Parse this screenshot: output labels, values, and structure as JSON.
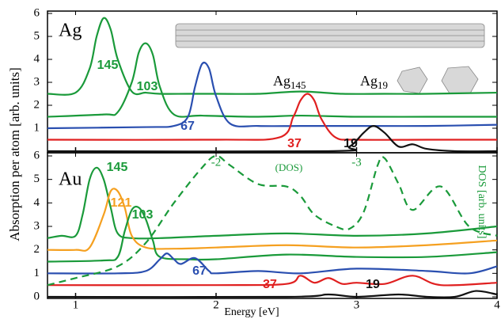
{
  "chart_data": [
    {
      "type": "line",
      "panel_label": "Ag",
      "ylabel": "Absorption per atom [arb. units]",
      "xlim": [
        0.8,
        4
      ],
      "xticks": [
        1,
        2,
        3,
        4
      ],
      "ylim": [
        0,
        6
      ],
      "yticks": [
        1,
        2,
        3,
        4,
        5,
        6
      ],
      "xtick_labels": false,
      "annotations": [
        {
          "text": "Ag",
          "sub": "145"
        },
        {
          "text": "Ag",
          "sub": "19"
        }
      ],
      "series": [
        {
          "name": "145",
          "color": "#1a9a3a",
          "x": [
            0.8,
            1.0,
            1.1,
            1.15,
            1.2,
            1.25,
            1.3,
            1.4,
            1.5,
            1.6,
            1.8,
            2.0,
            2.3,
            2.6,
            2.9,
            3.2,
            3.5,
            4.0
          ],
          "values": [
            2.5,
            2.55,
            3.6,
            5.0,
            5.8,
            5.3,
            4.0,
            2.6,
            2.55,
            2.5,
            2.5,
            2.5,
            2.5,
            2.6,
            2.5,
            2.5,
            2.5,
            2.55
          ]
        },
        {
          "name": "103",
          "color": "#1a9a3a",
          "x": [
            0.8,
            1.2,
            1.3,
            1.4,
            1.45,
            1.5,
            1.55,
            1.6,
            1.7,
            1.9,
            2.3,
            2.6,
            3.0,
            3.5,
            4.0
          ],
          "values": [
            1.5,
            1.6,
            1.7,
            3.0,
            4.3,
            4.7,
            4.2,
            2.8,
            1.6,
            1.55,
            1.5,
            1.55,
            1.5,
            1.5,
            1.5
          ]
        },
        {
          "name": "67",
          "color": "#2a4fb0",
          "x": [
            0.8,
            1.5,
            1.7,
            1.8,
            1.85,
            1.9,
            1.95,
            2.0,
            2.1,
            2.3,
            2.6,
            3.0,
            3.5,
            4.0
          ],
          "values": [
            1.0,
            1.05,
            1.1,
            1.5,
            2.8,
            3.8,
            3.6,
            2.4,
            1.2,
            1.1,
            1.1,
            1.1,
            1.1,
            1.15
          ]
        },
        {
          "name": "37",
          "color": "#e02020",
          "x": [
            0.8,
            2.0,
            2.45,
            2.55,
            2.6,
            2.65,
            2.7,
            2.75,
            2.85,
            3.0,
            3.5,
            4.0
          ],
          "values": [
            0.5,
            0.5,
            0.6,
            1.5,
            2.2,
            2.5,
            2.2,
            1.4,
            0.6,
            0.5,
            0.5,
            0.5
          ]
        },
        {
          "name": "19",
          "color": "#111111",
          "x": [
            0.8,
            2.8,
            2.95,
            3.05,
            3.12,
            3.2,
            3.3,
            3.4,
            3.5,
            3.7,
            4.0
          ],
          "values": [
            0,
            0,
            0.2,
            0.8,
            1.1,
            0.8,
            0.2,
            0.3,
            0.1,
            0,
            0
          ]
        }
      ]
    },
    {
      "type": "line",
      "panel_label": "Au",
      "xlabel": "Energy [eV]",
      "y2label": "DOS [arb. units]",
      "xlim": [
        0.8,
        4
      ],
      "xticks": [
        1,
        2,
        3,
        4
      ],
      "ylim": [
        0,
        6
      ],
      "yticks": [
        0,
        1,
        2,
        3,
        4,
        5,
        6
      ],
      "xtick_labels": true,
      "x2lim": [
        -0.8,
        -4
      ],
      "x2ticks": [
        -2,
        -3
      ],
      "annotations": [
        {
          "text": "(DOS)"
        }
      ],
      "series": [
        {
          "name": "145",
          "color": "#1a9a3a",
          "x": [
            0.8,
            0.9,
            1.0,
            1.05,
            1.1,
            1.15,
            1.2,
            1.25,
            1.3,
            1.4,
            1.6,
            2.0,
            2.5,
            3.0,
            3.5,
            4.0
          ],
          "values": [
            2.5,
            2.6,
            2.6,
            3.5,
            5.0,
            5.5,
            5.0,
            3.8,
            2.7,
            2.5,
            2.5,
            2.6,
            2.7,
            2.6,
            2.7,
            3.0
          ]
        },
        {
          "name": "121",
          "color": "#f5a020",
          "x": [
            0.8,
            1.0,
            1.1,
            1.2,
            1.25,
            1.3,
            1.35,
            1.4,
            1.5,
            1.7,
            2.0,
            2.5,
            3.0,
            3.5,
            4.0
          ],
          "values": [
            2.0,
            2.0,
            2.1,
            3.5,
            4.5,
            4.5,
            3.8,
            2.6,
            2.1,
            2.05,
            2.1,
            2.2,
            2.1,
            2.2,
            2.4
          ]
        },
        {
          "name": "103",
          "color": "#1a9a3a",
          "x": [
            0.8,
            1.2,
            1.3,
            1.35,
            1.4,
            1.45,
            1.5,
            1.55,
            1.6,
            1.8,
            2.0,
            2.5,
            3.0,
            3.5,
            4.0
          ],
          "values": [
            1.5,
            1.55,
            1.7,
            2.8,
            3.7,
            3.8,
            3.3,
            2.4,
            1.7,
            1.6,
            1.6,
            1.8,
            1.7,
            1.7,
            1.9
          ]
        },
        {
          "name": "67",
          "color": "#2a4fb0",
          "x": [
            0.8,
            1.3,
            1.5,
            1.6,
            1.65,
            1.7,
            1.75,
            1.85,
            1.95,
            2.0,
            2.3,
            2.6,
            3.0,
            3.5,
            3.8,
            4.0
          ],
          "values": [
            1.0,
            1.0,
            1.1,
            1.6,
            1.85,
            1.6,
            1.4,
            1.65,
            1.1,
            1.0,
            1.1,
            1.0,
            1.2,
            1.1,
            1.0,
            1.3
          ]
        },
        {
          "name": "37",
          "color": "#e02020",
          "x": [
            0.8,
            2.0,
            2.5,
            2.6,
            2.7,
            2.8,
            2.9,
            3.0,
            3.2,
            3.4,
            3.6,
            4.0
          ],
          "values": [
            0.5,
            0.5,
            0.55,
            0.9,
            0.6,
            0.8,
            0.55,
            0.6,
            0.55,
            0.9,
            0.5,
            0.6
          ]
        },
        {
          "name": "19",
          "color": "#111111",
          "x": [
            0.8,
            2.5,
            2.8,
            3.0,
            3.3,
            3.5,
            3.7,
            3.85,
            4.0
          ],
          "values": [
            0,
            0,
            0.1,
            0,
            0.1,
            0,
            0,
            0.25,
            0.1
          ]
        },
        {
          "color": "#1a9a3a",
          "dashed": true,
          "x": [
            0.8,
            1.0,
            1.3,
            1.5,
            1.7,
            1.9,
            2.0,
            2.1,
            2.3,
            2.5,
            2.6,
            2.7,
            2.85,
            2.95,
            3.05,
            3.15,
            3.2,
            3.3,
            3.4,
            3.6,
            3.8,
            4.0
          ],
          "values": [
            0.5,
            0.8,
            1.3,
            2.3,
            4.0,
            5.5,
            6.0,
            5.6,
            4.8,
            4.7,
            4.3,
            3.5,
            3.0,
            2.9,
            3.6,
            5.6,
            5.9,
            4.8,
            3.7,
            4.7,
            3.0,
            2.6
          ]
        }
      ]
    }
  ]
}
